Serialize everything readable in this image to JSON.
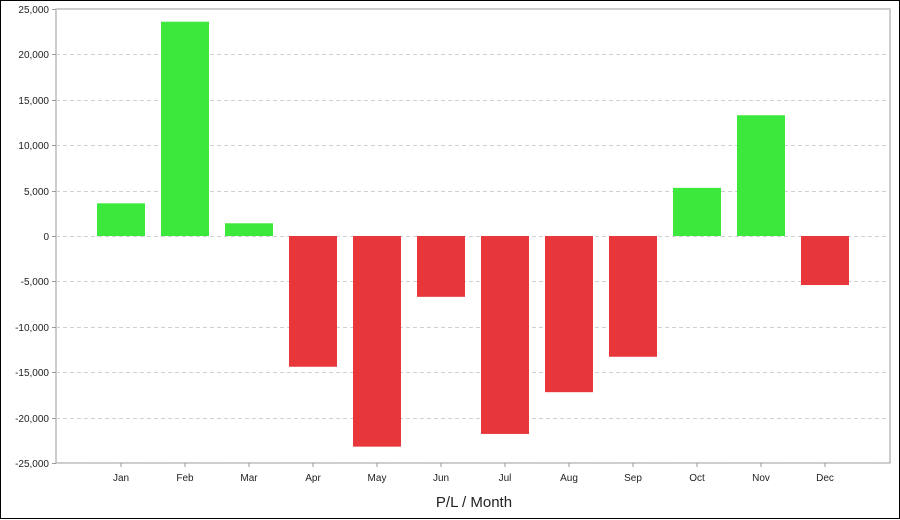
{
  "chart_data": {
    "type": "bar",
    "title": "",
    "xlabel": "P/L / Month",
    "ylabel": "",
    "categories": [
      "Jan",
      "Feb",
      "Mar",
      "Apr",
      "May",
      "Jun",
      "Jul",
      "Aug",
      "Sep",
      "Oct",
      "Nov",
      "Dec"
    ],
    "values": [
      3600,
      23600,
      1400,
      -14400,
      -23200,
      -6700,
      -21800,
      -17200,
      -13300,
      5300,
      13300,
      -5400
    ],
    "ylim": [
      -25000,
      25000
    ],
    "yticks": [
      "25,000",
      "20,000",
      "15,000",
      "10,000",
      "5,000",
      "0",
      "-5,000",
      "-10,000",
      "-15,000",
      "-20,000",
      "-25,000"
    ],
    "grid": true,
    "legend": "none",
    "colors": {
      "positive": "#3de83d",
      "negative": "#e8373a",
      "grid": "#d0d0d0",
      "axis": "#999999"
    }
  }
}
